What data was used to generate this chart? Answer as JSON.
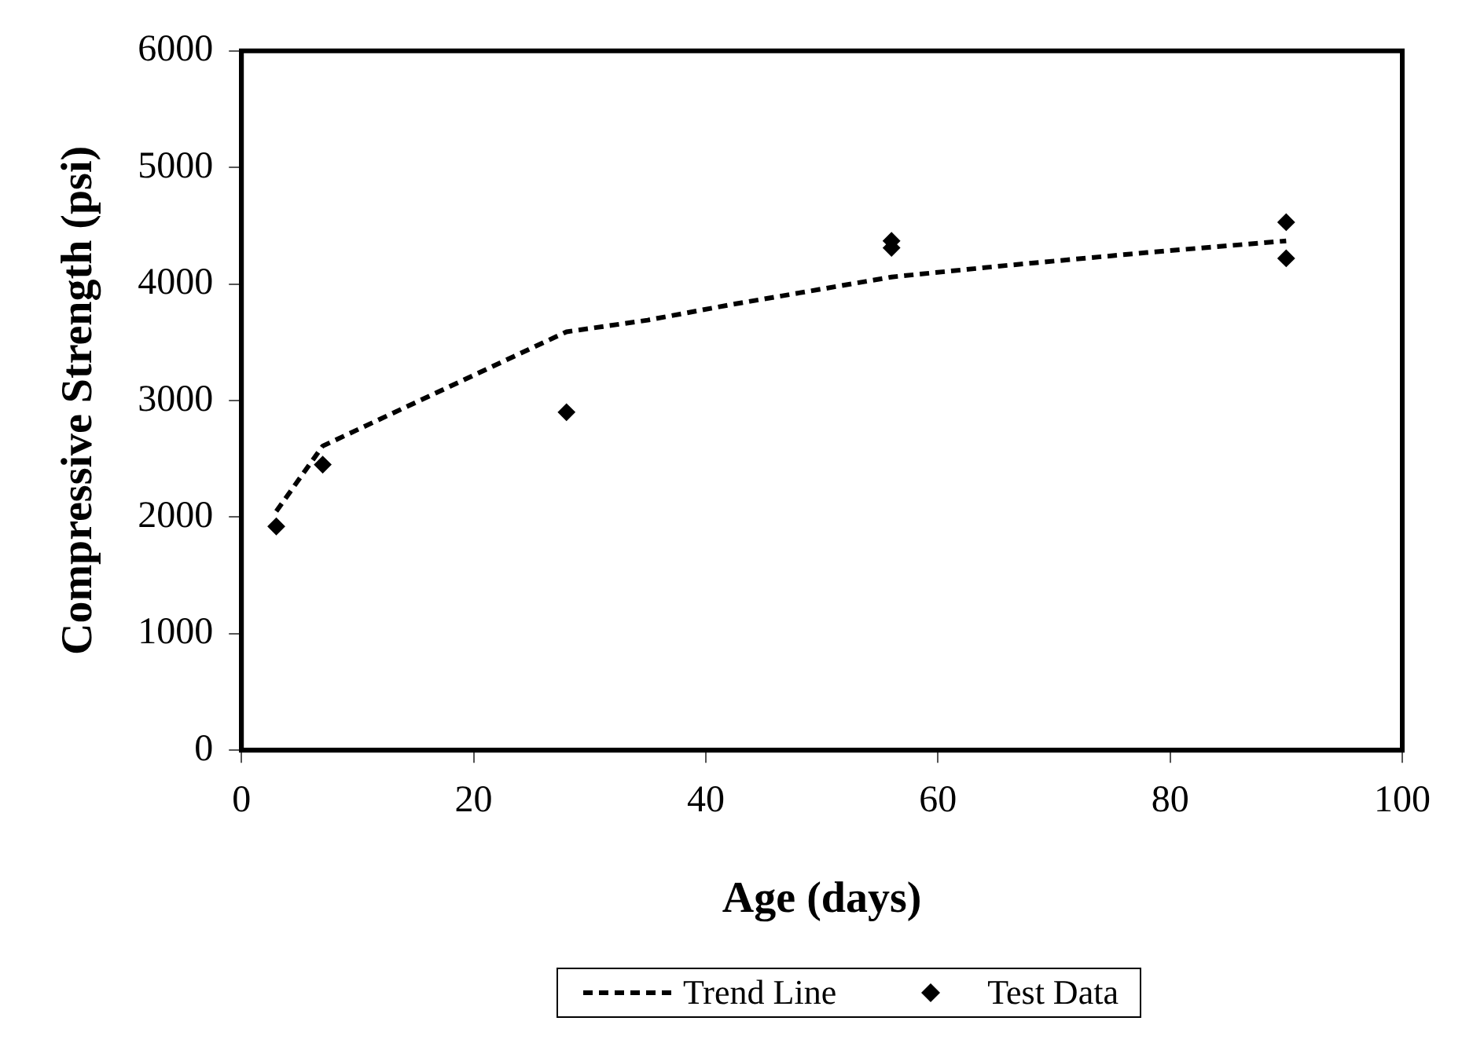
{
  "chart_data": {
    "type": "scatter",
    "xlabel": "Age (days)",
    "ylabel": "Compressive Strength (psi)",
    "xlim": [
      0,
      100
    ],
    "xticks": [
      0,
      20,
      40,
      60,
      80,
      100
    ],
    "ylim": [
      0,
      6000
    ],
    "yticks": [
      0,
      1000,
      2000,
      3000,
      4000,
      5000,
      6000
    ],
    "legend": "bottom",
    "series": [
      {
        "name": "Trend Line",
        "type": "line",
        "line_style": "dashed",
        "marker": "none",
        "color": "#000000",
        "x": [
          3,
          7,
          28,
          35,
          42,
          56,
          66,
          78,
          90
        ],
        "values": [
          2050,
          2610,
          3590,
          3690,
          3820,
          4060,
          4160,
          4270,
          4370
        ]
      },
      {
        "name": "Test Data",
        "type": "scatter",
        "marker": "diamond",
        "color": "#000000",
        "x": [
          3,
          7,
          28,
          56,
          56,
          90,
          90
        ],
        "values": [
          1920,
          2450,
          2900,
          4370,
          4310,
          4530,
          4220
        ]
      }
    ]
  }
}
